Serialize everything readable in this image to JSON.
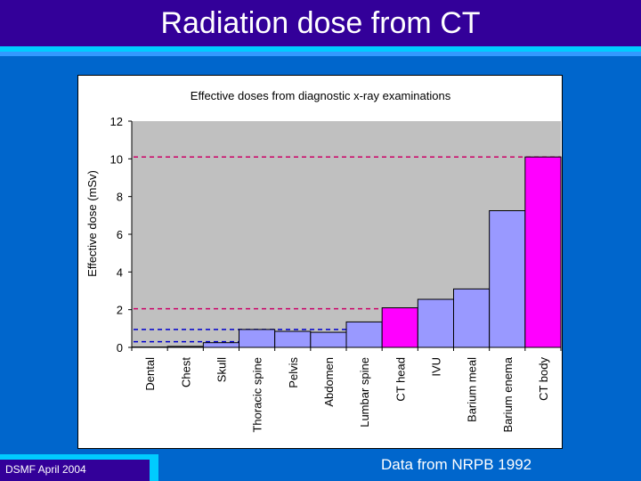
{
  "slide": {
    "title": "Radiation dose from CT",
    "footer": "DSMF April 2004",
    "source": "Data from NRPB 1992"
  },
  "colors": {
    "background": "#0066cc",
    "title_bar": "#330099",
    "stripe": "#00ccff",
    "plot_area": "#c0c0c0",
    "bar_default": "#9999ff",
    "bar_ct": "#ff00ff",
    "ref_line_magenta": "#cc0066",
    "ref_line_blue": "#0000cc"
  },
  "chart_data": {
    "type": "bar",
    "title": "Effective doses from diagnostic x-ray examinations",
    "xlabel": "",
    "ylabel": "Effective dose (mSv)",
    "ylim": [
      0,
      12
    ],
    "yticks": [
      0,
      2,
      4,
      6,
      8,
      10,
      12
    ],
    "grid": false,
    "legend": "none",
    "categories": [
      "Dental",
      "Chest",
      "Skull",
      "Thoracic spine",
      "Pelvis",
      "Abdomen",
      "Lumbar spine",
      "CT head",
      "IVU",
      "Barium meal",
      "Barium enema",
      "CT body"
    ],
    "values": [
      0.02,
      0.05,
      0.25,
      0.95,
      0.85,
      0.8,
      1.35,
      2.1,
      2.55,
      3.1,
      7.25,
      10.1
    ],
    "highlighted": [
      "CT head",
      "CT body"
    ],
    "reference_lines": [
      {
        "value": 10.1,
        "from": "Dental",
        "to": "CT body",
        "color": "magenta"
      },
      {
        "value": 2.05,
        "from": "Dental",
        "to": "CT head",
        "color": "magenta"
      },
      {
        "value": 0.95,
        "from": "Dental",
        "to": "Abdomen",
        "color": "blue"
      },
      {
        "value": 0.3,
        "from": "Dental",
        "to": "Skull",
        "color": "blue"
      }
    ]
  }
}
